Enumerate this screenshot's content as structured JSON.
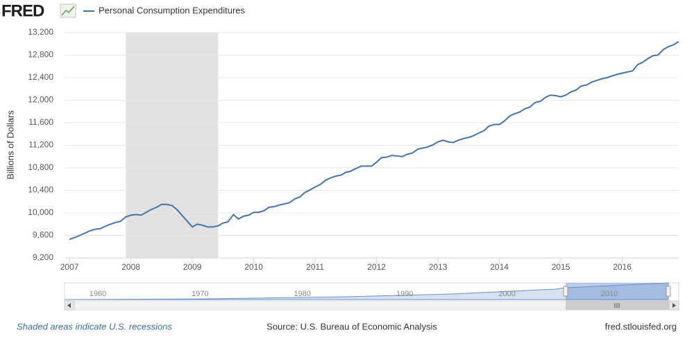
{
  "chart_data": {
    "type": "line",
    "logo": "FRED",
    "y_axis_label": "Billions of Dollars",
    "series": [
      {
        "name": "Personal Consumption Expenditures",
        "color": "#4572a7",
        "x": [
          2007,
          2007.08,
          2007.17,
          2007.25,
          2007.33,
          2007.42,
          2007.5,
          2007.58,
          2007.67,
          2007.75,
          2007.83,
          2007.92,
          2008,
          2008.08,
          2008.17,
          2008.25,
          2008.33,
          2008.42,
          2008.5,
          2008.58,
          2008.67,
          2008.75,
          2008.83,
          2008.92,
          2009,
          2009.08,
          2009.17,
          2009.25,
          2009.33,
          2009.42,
          2009.5,
          2009.58,
          2009.67,
          2009.75,
          2009.83,
          2009.92,
          2010,
          2010.08,
          2010.17,
          2010.25,
          2010.33,
          2010.42,
          2010.5,
          2010.58,
          2010.67,
          2010.75,
          2010.83,
          2010.92,
          2011,
          2011.08,
          2011.17,
          2011.25,
          2011.33,
          2011.42,
          2011.5,
          2011.58,
          2011.67,
          2011.75,
          2011.83,
          2011.92,
          2012,
          2012.08,
          2012.17,
          2012.25,
          2012.33,
          2012.42,
          2012.5,
          2012.58,
          2012.67,
          2012.75,
          2012.83,
          2012.92,
          2013,
          2013.08,
          2013.17,
          2013.25,
          2013.33,
          2013.42,
          2013.5,
          2013.58,
          2013.67,
          2013.75,
          2013.83,
          2013.92,
          2014,
          2014.08,
          2014.17,
          2014.25,
          2014.33,
          2014.42,
          2014.5,
          2014.58,
          2014.67,
          2014.75,
          2014.83,
          2014.92,
          2015,
          2015.08,
          2015.17,
          2015.25,
          2015.33,
          2015.42,
          2015.5,
          2015.58,
          2015.67,
          2015.75,
          2015.83,
          2015.92,
          2016,
          2016.08,
          2016.17,
          2016.25,
          2016.33,
          2016.42,
          2016.5,
          2016.58,
          2016.67,
          2016.75,
          2016.83,
          2016.92
        ],
        "values": [
          9530,
          9560,
          9600,
          9640,
          9680,
          9710,
          9720,
          9760,
          9800,
          9830,
          9850,
          9930,
          9960,
          9970,
          9960,
          10010,
          10060,
          10100,
          10150,
          10150,
          10130,
          10060,
          9960,
          9850,
          9750,
          9800,
          9780,
          9750,
          9750,
          9770,
          9820,
          9840,
          9970,
          9890,
          9940,
          9960,
          10010,
          10010,
          10040,
          10100,
          10110,
          10140,
          10160,
          10180,
          10250,
          10280,
          10360,
          10410,
          10460,
          10500,
          10580,
          10620,
          10650,
          10670,
          10720,
          10740,
          10790,
          10830,
          10830,
          10830,
          10900,
          10980,
          10990,
          11020,
          11010,
          11000,
          11040,
          11060,
          11130,
          11150,
          11170,
          11210,
          11260,
          11290,
          11260,
          11250,
          11290,
          11320,
          11340,
          11370,
          11420,
          11460,
          11540,
          11570,
          11570,
          11630,
          11720,
          11760,
          11790,
          11850,
          11880,
          11960,
          11980,
          12050,
          12090,
          12080,
          12060,
          12090,
          12150,
          12180,
          12250,
          12270,
          12320,
          12350,
          12380,
          12400,
          12430,
          12460,
          12480,
          12500,
          12520,
          12630,
          12670,
          12740,
          12790,
          12800,
          12900,
          12950,
          12980,
          13040
        ]
      }
    ],
    "recessions": [
      [
        2007.92,
        2009.42
      ]
    ],
    "recession_color": "#e1e1e1",
    "xlim": [
      2006.92,
      2016.92
    ],
    "xticks": [
      2007,
      2008,
      2009,
      2010,
      2011,
      2012,
      2013,
      2014,
      2015,
      2016
    ],
    "ylim": [
      9200,
      13200
    ],
    "yticks": [
      {
        "value": 9200,
        "label": "9,200"
      },
      {
        "value": 9600,
        "label": "9,600"
      },
      {
        "value": 10000,
        "label": "10,000"
      },
      {
        "value": 10400,
        "label": "10,400"
      },
      {
        "value": 10800,
        "label": "10,800"
      },
      {
        "value": 11200,
        "label": "11,200"
      },
      {
        "value": 11600,
        "label": "11,600"
      },
      {
        "value": 12000,
        "label": "12,000"
      },
      {
        "value": 12400,
        "label": "12,400"
      },
      {
        "value": 12800,
        "label": "12,800"
      },
      {
        "value": 13200,
        "label": "13,200"
      }
    ],
    "grid": true,
    "navigator_labels": [
      "1960",
      "1970",
      "1980",
      "1990",
      "2000",
      "2010"
    ],
    "footer": {
      "note": "Shaded areas indicate U.S. recessions",
      "source": "Source: U.S. Bureau of Economic Analysis",
      "site": "fred.stlouisfed.org"
    }
  }
}
